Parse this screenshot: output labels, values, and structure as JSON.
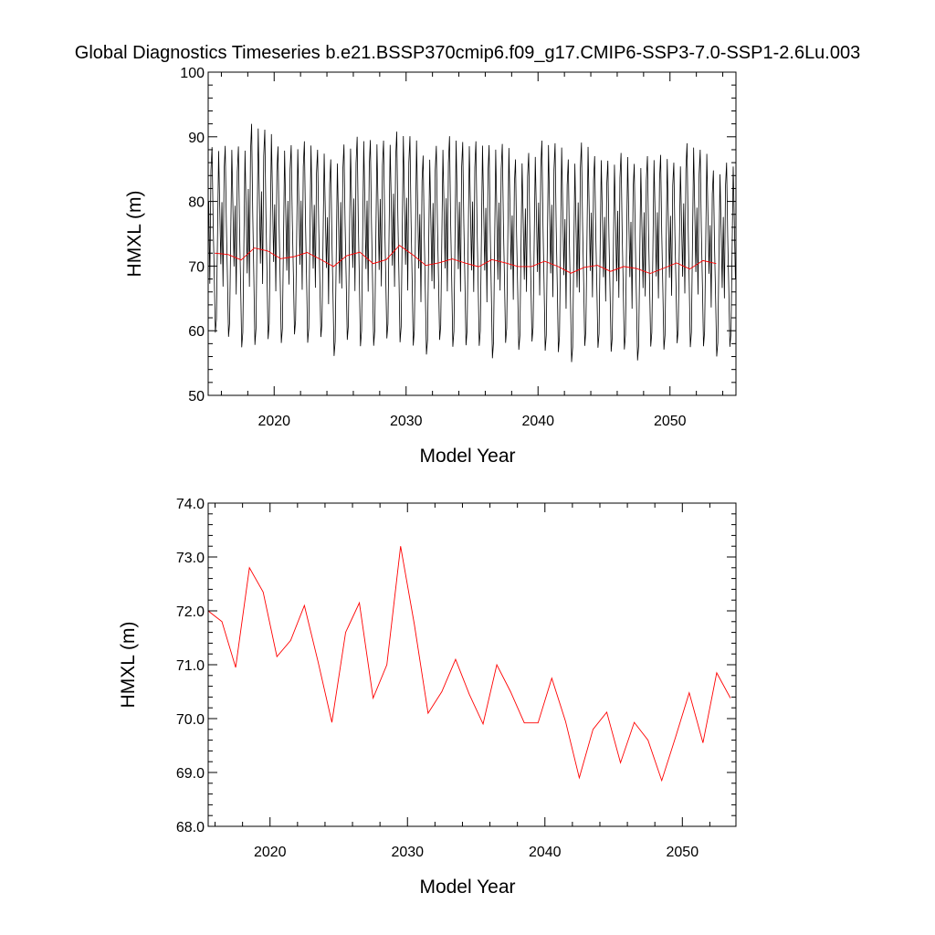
{
  "title": "Global Diagnostics Timeseries b.e21.BSSP370cmip6.f09_g17.CMIP6-SSP3-7.0-SSP1-2.6Lu.003",
  "colors": {
    "monthly_line": "#000000",
    "annual_line": "#ff0000",
    "axes": "#000000"
  },
  "chart_data": [
    {
      "type": "line",
      "title": "Global Diagnostics Timeseries b.e21.BSSP370cmip6.f09_g17.CMIP6-SSP3-7.0-SSP1-2.6Lu.003",
      "xlabel": "Model Year",
      "ylabel": "HMXL (m)",
      "xlim": [
        2015,
        2055
      ],
      "ylim": [
        50,
        100
      ],
      "xticks": [
        2020,
        2030,
        2040,
        2050
      ],
      "yticks": [
        50,
        60,
        70,
        80,
        90,
        100
      ],
      "ytick_labels": [
        "50",
        "60",
        "70",
        "80",
        "90",
        "100"
      ],
      "grid": false,
      "series": [
        {
          "kind": "monthly",
          "color": "#000000",
          "start_year": 2015,
          "months": 480,
          "annual_max": [
            88.4,
            88.6,
            88.5,
            92.0,
            91.1,
            88.5,
            88.7,
            89.3,
            88.0,
            86.5,
            88.8,
            90.0,
            89.5,
            89.4,
            90.8,
            90.1,
            87.1,
            88.6,
            90.1,
            89.2,
            89.3,
            88.7,
            88.9,
            86.5,
            87.5,
            89.4,
            89.0,
            86.5,
            89.1,
            87.0,
            86.3,
            87.5,
            85.8,
            87.0,
            87.2,
            86.0,
            89.0,
            88.0,
            84.8,
            86.0
          ],
          "annual_min": [
            58.2,
            57.5,
            55.8,
            56.0,
            57.0,
            56.5,
            57.9,
            56.5,
            57.5,
            54.5,
            57.0,
            55.9,
            56.0,
            57.2,
            56.5,
            56.0,
            54.7,
            57.0,
            55.8,
            56.1,
            56.0,
            54.0,
            56.5,
            55.5,
            56.8,
            55.2,
            55.0,
            53.5,
            56.0,
            55.8,
            55.2,
            55.5,
            53.8,
            56.0,
            55.5,
            56.6,
            55.8,
            56.0,
            54.5,
            56.0
          ]
        },
        {
          "kind": "annual",
          "color": "#ff0000",
          "x": [
            2015.5,
            2016.5,
            2017.5,
            2018.5,
            2019.5,
            2020.5,
            2021.5,
            2022.5,
            2023.5,
            2024.5,
            2025.5,
            2026.5,
            2027.5,
            2028.5,
            2029.5,
            2030.5,
            2031.5,
            2032.5,
            2033.5,
            2034.5,
            2035.5,
            2036.5,
            2037.5,
            2038.5,
            2039.5,
            2040.5,
            2041.5,
            2042.5,
            2043.5,
            2044.5,
            2045.5,
            2046.5,
            2047.5,
            2048.5,
            2049.5,
            2050.5,
            2051.5,
            2052.5,
            2053.5
          ],
          "y": [
            72.0,
            71.8,
            70.95,
            72.8,
            72.35,
            71.15,
            71.45,
            72.1,
            71.05,
            69.93,
            71.6,
            72.15,
            70.38,
            71.0,
            73.2,
            71.75,
            70.1,
            70.5,
            71.1,
            70.45,
            69.9,
            71.0,
            70.5,
            69.92,
            69.92,
            70.75,
            69.95,
            68.9,
            69.8,
            70.12,
            69.18,
            69.93,
            69.6,
            68.85,
            69.65,
            70.48,
            69.55,
            70.85,
            70.38
          ]
        }
      ]
    },
    {
      "type": "line",
      "title": "",
      "xlabel": "Model Year",
      "ylabel": "HMXL (m)",
      "xlim": [
        2015.5,
        2053.9
      ],
      "ylim": [
        68,
        74
      ],
      "xticks": [
        2020,
        2030,
        2040,
        2050
      ],
      "yticks": [
        68,
        69,
        70,
        71,
        72,
        73,
        74
      ],
      "ytick_labels": [
        "68.0",
        "69.0",
        "70.0",
        "71.0",
        "72.0",
        "73.0",
        "74.0"
      ],
      "grid": false,
      "series": [
        {
          "kind": "annual",
          "color": "#ff0000",
          "x": [
            2015.5,
            2016.5,
            2017.5,
            2018.5,
            2019.5,
            2020.5,
            2021.5,
            2022.5,
            2023.5,
            2024.5,
            2025.5,
            2026.5,
            2027.5,
            2028.5,
            2029.5,
            2030.5,
            2031.5,
            2032.5,
            2033.5,
            2034.5,
            2035.5,
            2036.5,
            2037.5,
            2038.5,
            2039.5,
            2040.5,
            2041.5,
            2042.5,
            2043.5,
            2044.5,
            2045.5,
            2046.5,
            2047.5,
            2048.5,
            2049.5,
            2050.5,
            2051.5,
            2052.5,
            2053.5
          ],
          "y": [
            72.0,
            71.8,
            70.95,
            72.8,
            72.35,
            71.15,
            71.45,
            72.1,
            71.05,
            69.93,
            71.6,
            72.15,
            70.38,
            71.0,
            73.2,
            71.75,
            70.1,
            70.5,
            71.1,
            70.45,
            69.9,
            71.0,
            70.5,
            69.92,
            69.92,
            70.75,
            69.95,
            68.9,
            69.8,
            70.12,
            69.18,
            69.93,
            69.6,
            68.85,
            69.65,
            70.48,
            69.55,
            70.85,
            70.38
          ]
        }
      ]
    }
  ]
}
